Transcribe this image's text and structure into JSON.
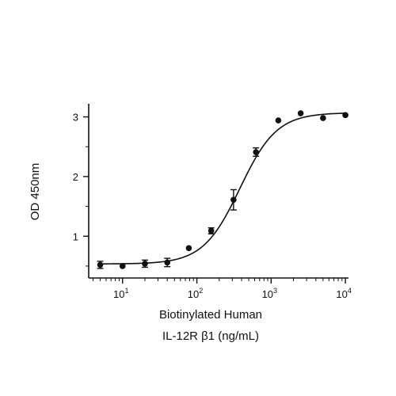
{
  "chart_data": {
    "type": "scatter",
    "title": "",
    "xlabel_lines": [
      "Biotinylated Human",
      "IL-12R β1 (ng/mL)"
    ],
    "ylabel": "OD 450nm",
    "xscale": "log",
    "xlim": [
      3.5,
      11000
    ],
    "ylim": [
      0.3,
      3.22
    ],
    "x_ticks": [
      {
        "value": 10,
        "base": "10",
        "exp": "1"
      },
      {
        "value": 100,
        "base": "10",
        "exp": "2"
      },
      {
        "value": 1000,
        "base": "10",
        "exp": "3"
      },
      {
        "value": 10000,
        "base": "10",
        "exp": "4"
      }
    ],
    "y_ticks": [
      {
        "value": 1,
        "label": "1"
      },
      {
        "value": 2,
        "label": "2"
      },
      {
        "value": 3,
        "label": "3"
      }
    ],
    "grid": false,
    "legend": "none",
    "series": [
      {
        "points": [
          {
            "x": 5,
            "y": 0.52,
            "err": 0.06
          },
          {
            "x": 10,
            "y": 0.5,
            "err": 0
          },
          {
            "x": 20,
            "y": 0.54,
            "err": 0.06
          },
          {
            "x": 40,
            "y": 0.56,
            "err": 0.07
          },
          {
            "x": 78,
            "y": 0.8,
            "err": 0
          },
          {
            "x": 156,
            "y": 1.09,
            "err": 0.05
          },
          {
            "x": 312,
            "y": 1.61,
            "err": 0.17
          },
          {
            "x": 625,
            "y": 2.41,
            "err": 0.07
          },
          {
            "x": 1250,
            "y": 2.94,
            "err": 0
          },
          {
            "x": 2500,
            "y": 3.06,
            "err": 0
          },
          {
            "x": 5000,
            "y": 2.98,
            "err": 0
          },
          {
            "x": 10000,
            "y": 3.03,
            "err": 0
          }
        ],
        "fit": {
          "model": "4PL",
          "bottom": 0.535,
          "top": 3.07,
          "ec50": 380,
          "hill": 1.75
        }
      }
    ],
    "colors": {
      "marker": "#111111",
      "line": "#111111",
      "axis": "#111111"
    }
  }
}
